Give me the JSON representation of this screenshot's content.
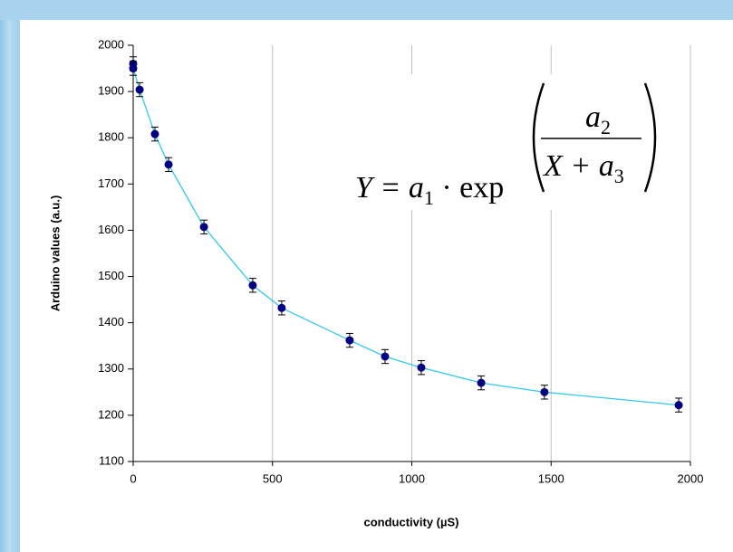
{
  "chart_data": {
    "type": "scatter",
    "xlabel": "conductivity (µS)",
    "ylabel": "Arduino values (a.u.)",
    "series": [
      {
        "color": "#000080",
        "line_color": "#33c8ee",
        "x": [
          0,
          0,
          23,
          78,
          127,
          254,
          429,
          533,
          777,
          904,
          1034,
          1249,
          1476,
          1958
        ],
        "values": [
          1960,
          1950,
          1904,
          1808,
          1742,
          1607,
          1481,
          1432,
          1362,
          1327,
          1303,
          1270,
          1250,
          1222
        ],
        "yerr": [
          15,
          15,
          15,
          15,
          15,
          15,
          15,
          15,
          15,
          15,
          15,
          15,
          15,
          15
        ]
      }
    ],
    "xlim": [
      0,
      2000
    ],
    "xticks": [
      0,
      500,
      1000,
      1500,
      2000
    ],
    "ylim": [
      1100,
      2000
    ],
    "yticks": [
      1100,
      1200,
      1300,
      1400,
      1500,
      1600,
      1700,
      1800,
      1900,
      2000
    ],
    "grid": "x",
    "annotation": {
      "lhs": "Y = ",
      "a1": "a",
      "a1_sub": "1",
      "op": " · exp",
      "num": "a",
      "num_sub": "2",
      "den": "X + a",
      "den_sub": "3"
    }
  }
}
